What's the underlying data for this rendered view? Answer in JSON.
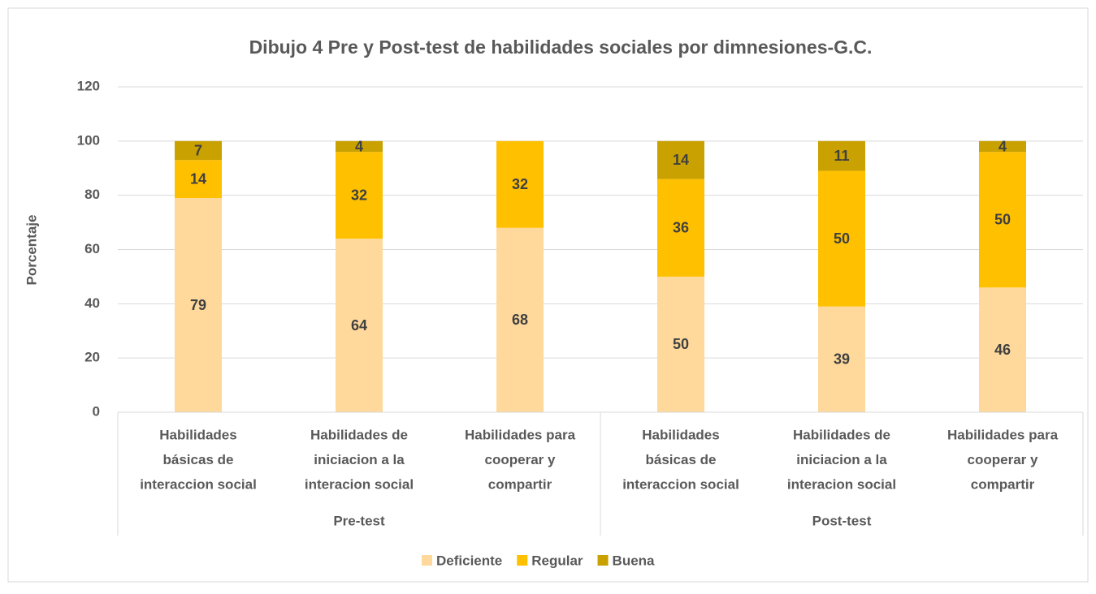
{
  "chart_data": {
    "type": "stacked_bar",
    "title": "Dibujo 4 Pre y Post-test de habilidades sociales por dimnesiones-G.C.",
    "y_label": "Porcentaje",
    "categories": [
      [
        "Habilidades",
        "básicas de",
        "interaccion social"
      ],
      [
        "Habilidades de",
        "iniciacion a la",
        "interacion social"
      ],
      [
        "Habilidades  para",
        "cooperar y",
        "compartir"
      ],
      [
        "Habilidades",
        "básicas de",
        "interaccion social"
      ],
      [
        "Habilidades de",
        "iniciacion a la",
        "interacion social"
      ],
      [
        "Habilidades  para",
        "cooperar y",
        "compartir"
      ]
    ],
    "groups": [
      "Pre-test",
      "Post-test"
    ],
    "series": [
      {
        "name": "Deficiente",
        "color": "#FFD99B",
        "values": [
          79,
          64,
          68,
          50,
          39,
          46
        ]
      },
      {
        "name": "Regular",
        "color": "#FFC000",
        "values": [
          14,
          32,
          32,
          36,
          50,
          50
        ]
      },
      {
        "name": "Buena",
        "color": "#C9A100",
        "values": [
          7,
          4,
          null,
          14,
          11,
          4
        ]
      }
    ],
    "ylim": [
      0,
      120
    ],
    "yticks": [
      0,
      20,
      40,
      60,
      80,
      100,
      120
    ],
    "grid": true,
    "legend": "bottom"
  }
}
